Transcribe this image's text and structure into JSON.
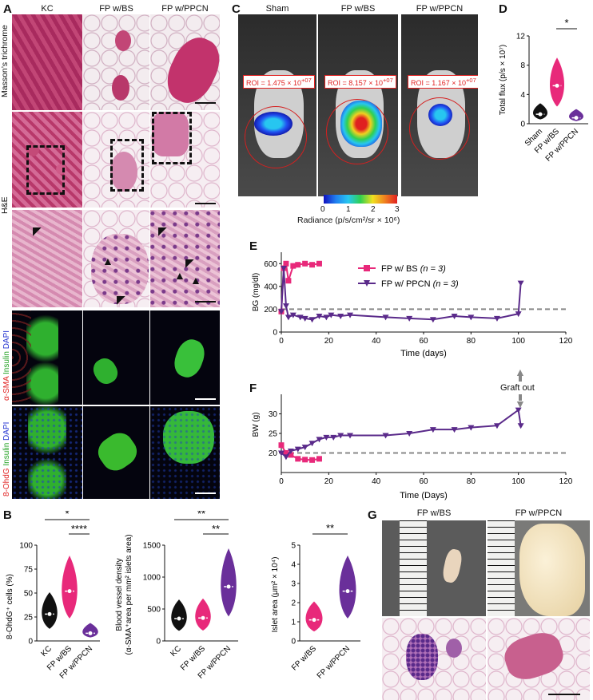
{
  "panels": {
    "A": {
      "letter": "A",
      "columns": [
        "KC",
        "FP w/BS",
        "FP w/PPCN"
      ],
      "row_labels": [
        "Masson’s trichrome",
        "H&E"
      ],
      "stain1": {
        "a": "α-SMA",
        "b": " Insulin",
        "c": " DAPI"
      },
      "stain2": {
        "a": "8-OhdG",
        "b": " Insulin",
        "c": " DAPI"
      }
    },
    "B": {
      "letter": "B",
      "sig1": [
        "*",
        "****"
      ],
      "sig2": [
        "**",
        "**"
      ],
      "sig3": [
        "**"
      ]
    },
    "C": {
      "letter": "C",
      "columns": [
        "Sham",
        "FP w/BS",
        "FP w/PPCN"
      ],
      "roi": [
        "ROI = 1.475 × 10",
        "ROI = 8.157 × 10",
        "ROI = 1.167 × 10"
      ],
      "roi_exp": "+07",
      "colorbar_ticks": [
        "0",
        "1",
        "2",
        "3"
      ],
      "colorbar_label": "Radiance (p/s/cm²/sr × 10⁶)"
    },
    "D": {
      "letter": "D",
      "sig": "*"
    },
    "E": {
      "letter": "E"
    },
    "F": {
      "letter": "F",
      "graft_out": "Graft out"
    },
    "G": {
      "letter": "G",
      "columns": [
        "FP w/BS",
        "FP w/PPCN"
      ]
    }
  },
  "chart_data": [
    {
      "panel": "B1",
      "type": "violin",
      "categories": [
        "KC",
        "FP w/BS",
        "FP w/PPCN"
      ],
      "ylabel": "8-OhdG⁺ cells (%)",
      "ylim": [
        0,
        100
      ],
      "yticks": [
        "0",
        "25",
        "50",
        "75",
        "100"
      ],
      "medians": [
        28,
        52,
        8
      ],
      "colors": [
        "#111111",
        "#e8297a",
        "#6a2f9a"
      ]
    },
    {
      "panel": "B2",
      "type": "violin",
      "categories": [
        "KC",
        "FP w/BS",
        "FP w/PPCN"
      ],
      "ylabel_line1": "Blood vessel density",
      "ylabel_line2": "(α-SMA⁺area per mm² islets area)",
      "ylim": [
        0,
        1500
      ],
      "yticks": [
        "0",
        "500",
        "1000",
        "1500"
      ],
      "medians": [
        350,
        360,
        850
      ],
      "colors": [
        "#111111",
        "#e8297a",
        "#6a2f9a"
      ]
    },
    {
      "panel": "B3",
      "type": "violin",
      "categories": [
        "FP w/BS",
        "FP w/PPCN"
      ],
      "ylabel": "Islet area (μm² × 10⁴)",
      "ylim": [
        0,
        5
      ],
      "yticks": [
        "0",
        "1",
        "2",
        "3",
        "4",
        "5"
      ],
      "medians": [
        1.1,
        2.6
      ],
      "colors": [
        "#e8297a",
        "#6a2f9a"
      ]
    },
    {
      "panel": "D",
      "type": "violin",
      "categories": [
        "Sham",
        "FP w/BS",
        "FP w/PPCN"
      ],
      "ylabel": "Total flux (p/s × 10⁷)",
      "ylim": [
        0,
        12
      ],
      "yticks": [
        "0",
        "4",
        "8",
        "12"
      ],
      "medians": [
        1.3,
        5.2,
        0.8
      ],
      "colors": [
        "#111111",
        "#e8297a",
        "#6a2f9a"
      ]
    },
    {
      "panel": "E",
      "type": "line",
      "xlabel": "Time (days)",
      "ylabel": "BG (mg/dl)",
      "xlim": [
        0,
        120
      ],
      "ylim": [
        0,
        700
      ],
      "xticks": [
        "0",
        "20",
        "40",
        "60",
        "80",
        "100",
        "120"
      ],
      "yticks": [
        "0",
        "200",
        "400",
        "600"
      ],
      "threshold": 200,
      "series": [
        {
          "name": "FP w/ BS",
          "n": "(n = 3)",
          "color": "#e8297a",
          "x": [
            0,
            1,
            2,
            3,
            5,
            7,
            10,
            13,
            16
          ],
          "y": [
            180,
            560,
            600,
            450,
            580,
            590,
            600,
            590,
            600
          ]
        },
        {
          "name": "FP w/ PPCN",
          "n": "(n = 3)",
          "color": "#5a2a8a",
          "x": [
            0,
            1,
            2,
            3,
            5,
            8,
            10,
            13,
            16,
            19,
            21,
            25,
            29,
            44,
            54,
            64,
            73,
            80,
            91,
            100,
            101
          ],
          "y": [
            180,
            560,
            230,
            130,
            150,
            130,
            120,
            110,
            140,
            130,
            150,
            140,
            150,
            130,
            120,
            110,
            140,
            130,
            120,
            160,
            430
          ]
        }
      ]
    },
    {
      "panel": "F",
      "type": "line",
      "xlabel": "Time (Days)",
      "ylabel": "BW (g)",
      "xlim": [
        0,
        120
      ],
      "ylim": [
        15,
        35
      ],
      "xticks": [
        "0",
        "20",
        "40",
        "60",
        "80",
        "100",
        "120"
      ],
      "yticks": [
        "20",
        "25",
        "30"
      ],
      "threshold": 20,
      "series": [
        {
          "name": "FP w/ BS",
          "color": "#e8297a",
          "x": [
            0,
            2,
            4,
            7,
            10,
            13,
            16
          ],
          "y": [
            22,
            20,
            19.5,
            18.5,
            18.3,
            18.2,
            18.5
          ]
        },
        {
          "name": "FP w/ PPCN",
          "color": "#5a2a8a",
          "x": [
            0,
            2,
            4,
            7,
            10,
            13,
            16,
            19,
            22,
            25,
            29,
            44,
            54,
            64,
            73,
            80,
            91,
            100,
            101
          ],
          "y": [
            20,
            19,
            20.5,
            21,
            21.5,
            22.5,
            23.5,
            24,
            24,
            24.5,
            24.5,
            24.5,
            25,
            26,
            26,
            26.5,
            27,
            31,
            27
          ]
        }
      ]
    }
  ]
}
